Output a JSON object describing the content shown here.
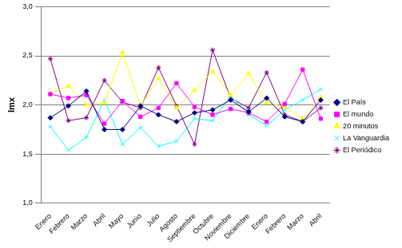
{
  "chart_data": {
    "type": "line",
    "y_label": "Imx",
    "categories": [
      "Enero",
      "Febrero",
      "Marzo",
      "Abril",
      "Mayo",
      "Junio",
      "Julio",
      "Agosto",
      "Septiembre",
      "Octubre",
      "Noviembre",
      "Diciembre",
      "Enero",
      "Febrero",
      "Marzo",
      "Abril"
    ],
    "series": [
      {
        "name": "El País",
        "color": "#000080",
        "marker": "diamond",
        "values": [
          1.87,
          1.99,
          2.14,
          1.75,
          1.75,
          1.99,
          1.9,
          1.83,
          1.92,
          1.95,
          2.05,
          1.93,
          2.07,
          1.88,
          1.83,
          2.05
        ]
      },
      {
        "name": "El mundo",
        "color": "#ff00ff",
        "marker": "square",
        "values": [
          2.11,
          2.07,
          2.1,
          1.81,
          2.04,
          1.88,
          1.97,
          2.22,
          1.98,
          1.9,
          1.96,
          1.92,
          1.83,
          2.01,
          2.36,
          1.86
        ]
      },
      {
        "name": "20 minutos",
        "color": "#ffff00",
        "marker": "triangle",
        "values": [
          2.12,
          2.19,
          2.0,
          2.02,
          2.53,
          1.99,
          2.27,
          1.97,
          2.15,
          2.34,
          2.1,
          2.32,
          2.02,
          1.98,
          1.86,
          2.08
        ]
      },
      {
        "name": "La Vanguardia",
        "color": "#00ffff",
        "marker": "x",
        "values": [
          1.78,
          1.54,
          1.67,
          2.05,
          1.6,
          1.77,
          1.58,
          1.63,
          1.86,
          1.84,
          2.09,
          1.9,
          1.79,
          1.95,
          2.05,
          2.16
        ]
      },
      {
        "name": "El Periódico",
        "color": "#800080",
        "marker": "star",
        "values": [
          2.47,
          1.84,
          1.87,
          2.25,
          2.03,
          1.97,
          2.38,
          1.99,
          1.6,
          2.56,
          2.07,
          1.97,
          2.33,
          1.9,
          1.83,
          1.97
        ]
      }
    ],
    "ylim": [
      1,
      3
    ],
    "yticks": [
      {
        "value": 1,
        "label": "1,0"
      },
      {
        "value": 1.5,
        "label": "1,5"
      },
      {
        "value": 2,
        "label": "2,0"
      },
      {
        "value": 2.5,
        "label": "2,5"
      },
      {
        "value": 3,
        "label": "3,0"
      }
    ],
    "grid": true,
    "legend": "right"
  }
}
